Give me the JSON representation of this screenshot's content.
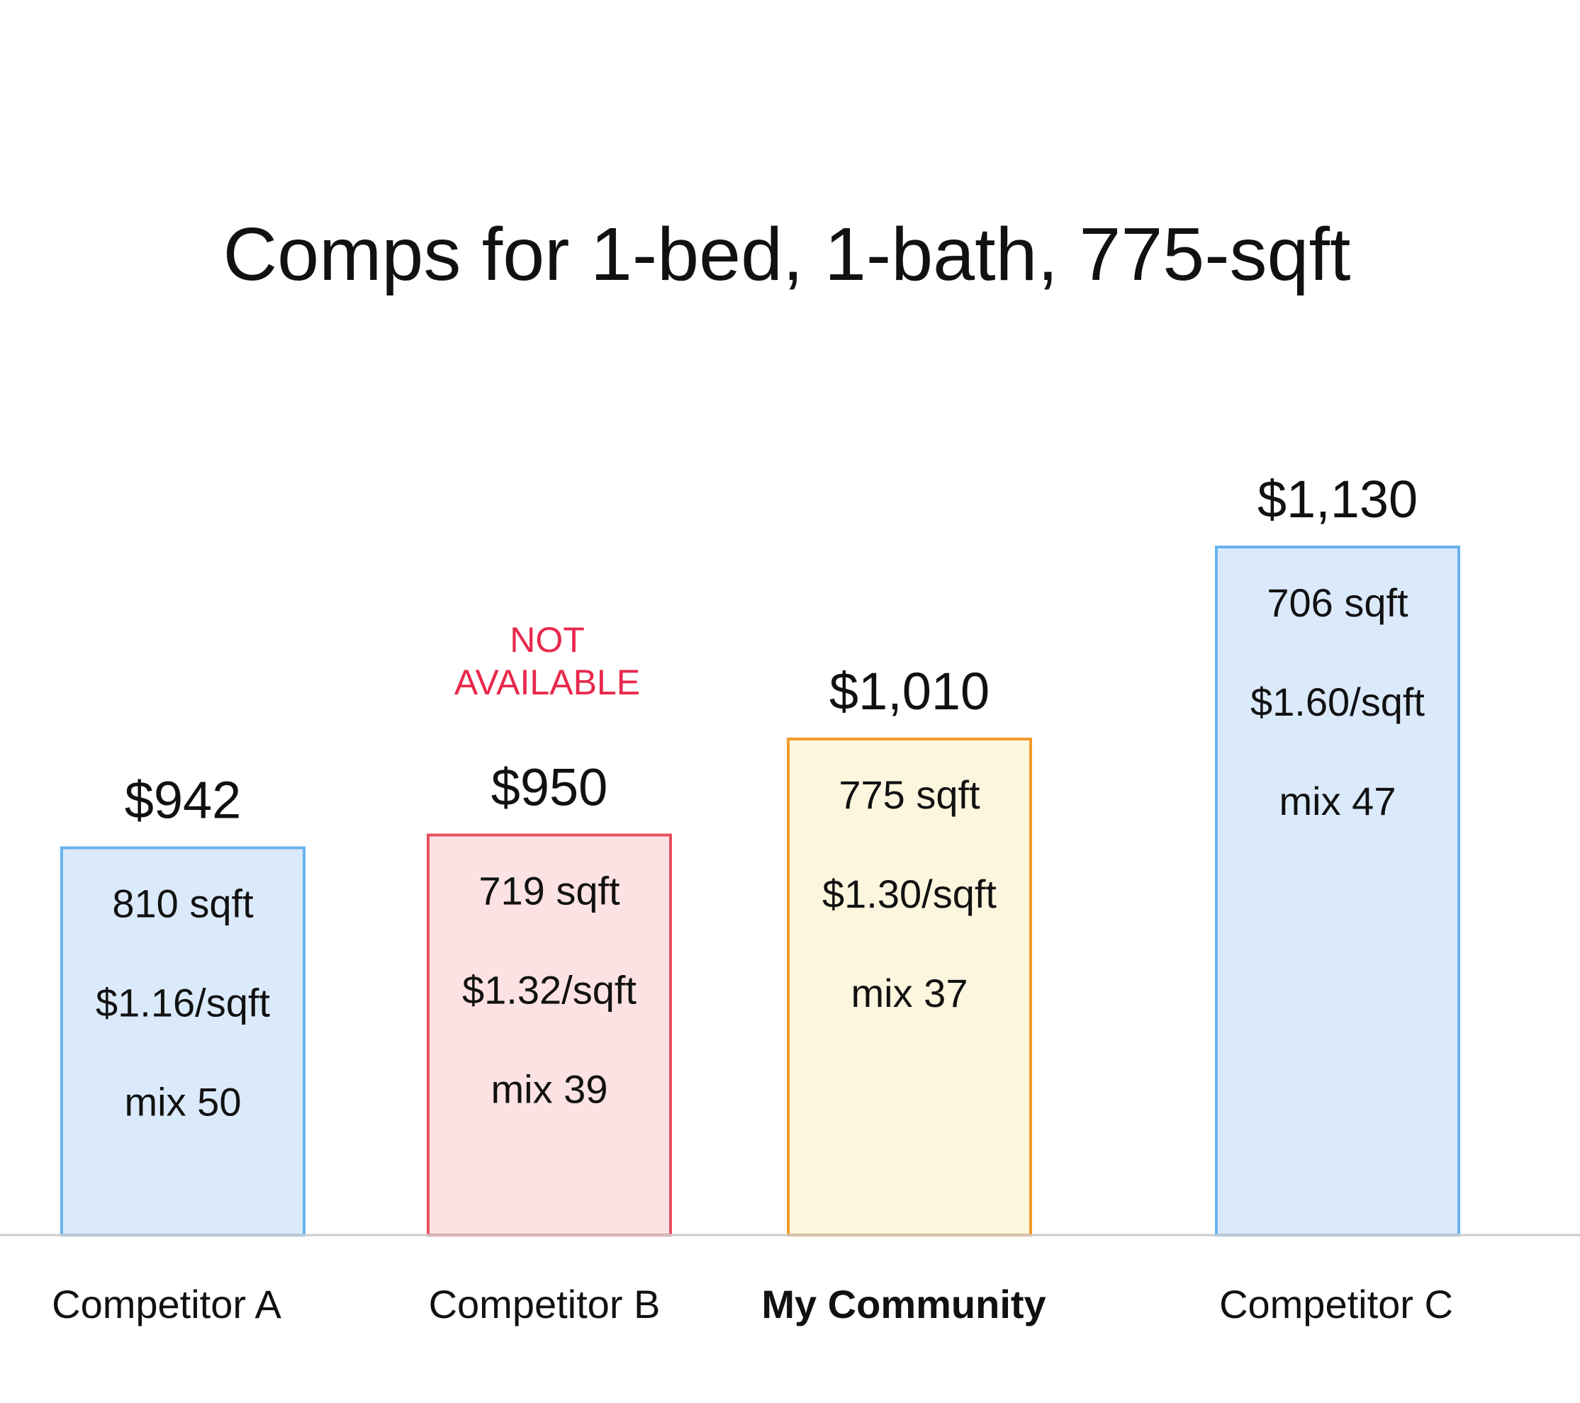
{
  "chart_data": {
    "type": "bar",
    "title": "Comps for 1-bed, 1-bath, 775-sqft",
    "categories": [
      "Competitor A",
      "Competitor B",
      "My Community",
      "Competitor C"
    ],
    "values": [
      942,
      950,
      1010,
      1130
    ],
    "value_labels": [
      "$942",
      "$950",
      "$1,010",
      "$1,130"
    ],
    "details": [
      [
        "810 sqft",
        "$1.16/sqft",
        "mix 50"
      ],
      [
        "719 sqft",
        "$1.32/sqft",
        "mix 39"
      ],
      [
        "775 sqft",
        "$1.30/sqft",
        "mix 37"
      ],
      [
        "706 sqft",
        "$1.60/sqft",
        "mix 47"
      ]
    ],
    "annotations": [
      {
        "category": "Competitor B",
        "lines": [
          "NOT",
          "AVAILABLE"
        ],
        "color": "#e8294c"
      }
    ],
    "highlight": "My Community",
    "colors": {
      "blue_fill": "#dbeafb",
      "blue_stroke": "#67b3ee",
      "red_fill": "#fde2e4",
      "red_stroke": "#e8505e",
      "yellow_fill": "#fdf6df",
      "yellow_stroke": "#f39a2a",
      "baseline": "#cccccc",
      "annotation": "#e8294c"
    },
    "bar_styles": [
      "blue",
      "red",
      "yellow",
      "blue"
    ],
    "xlabel": "",
    "ylabel": "",
    "ylim": [
      0,
      1130
    ],
    "grid": false,
    "legend": "none"
  }
}
